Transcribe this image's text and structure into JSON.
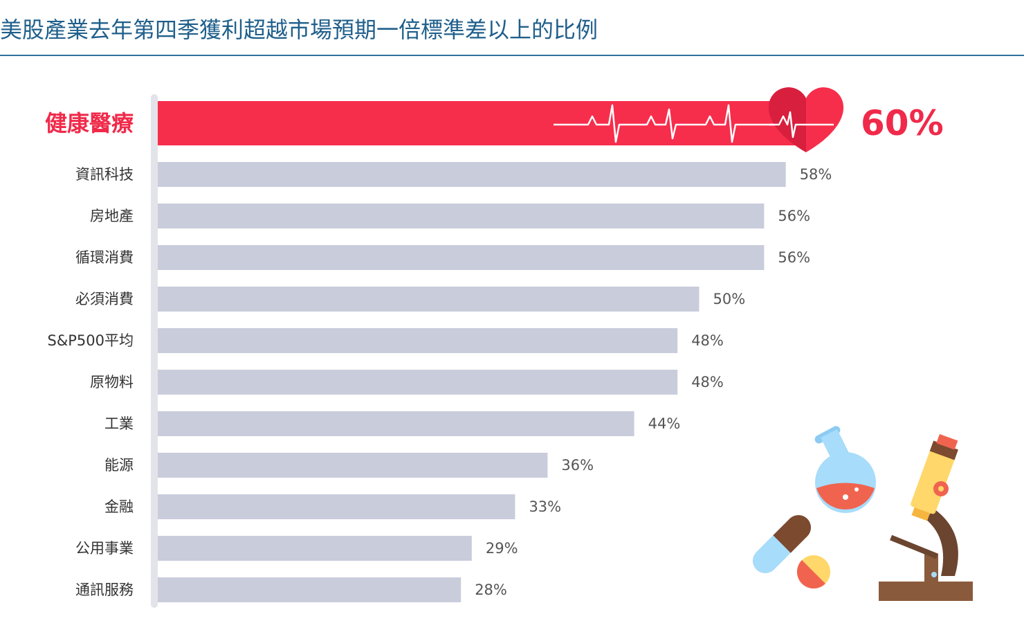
{
  "header": {
    "title": "美股產業去年第四季獲利超越市場預期一倍標準差以上的比例"
  },
  "chart_data": {
    "type": "bar",
    "orientation": "horizontal",
    "title": "美股產業去年第四季獲利超越市場預期一倍標準差以上的比例",
    "categories": [
      "健康醫療",
      "資訊科技",
      "房地產",
      "循環消費",
      "必須消費",
      "S&P500平均",
      "原物料",
      "工業",
      "能源",
      "金融",
      "公用事業",
      "通訊服務"
    ],
    "values": [
      60,
      58,
      56,
      56,
      50,
      48,
      48,
      44,
      36,
      33,
      29,
      28
    ],
    "value_labels": [
      "60%",
      "58%",
      "56%",
      "56%",
      "50%",
      "48%",
      "48%",
      "44%",
      "36%",
      "33%",
      "29%",
      "28%"
    ],
    "unit": "%",
    "highlight_category": "健康醫療",
    "colors": {
      "highlight": "#f72d4c",
      "bar": "#c9ccdb",
      "axis": "#e3e4ea",
      "title": "#1f5f8b"
    },
    "grid": false,
    "legend": "none"
  },
  "icons": [
    "heartbeat-line-icon",
    "heart-icon",
    "flask-icon",
    "pill-capsule-icon",
    "pill-tablet-icon",
    "microscope-icon"
  ]
}
